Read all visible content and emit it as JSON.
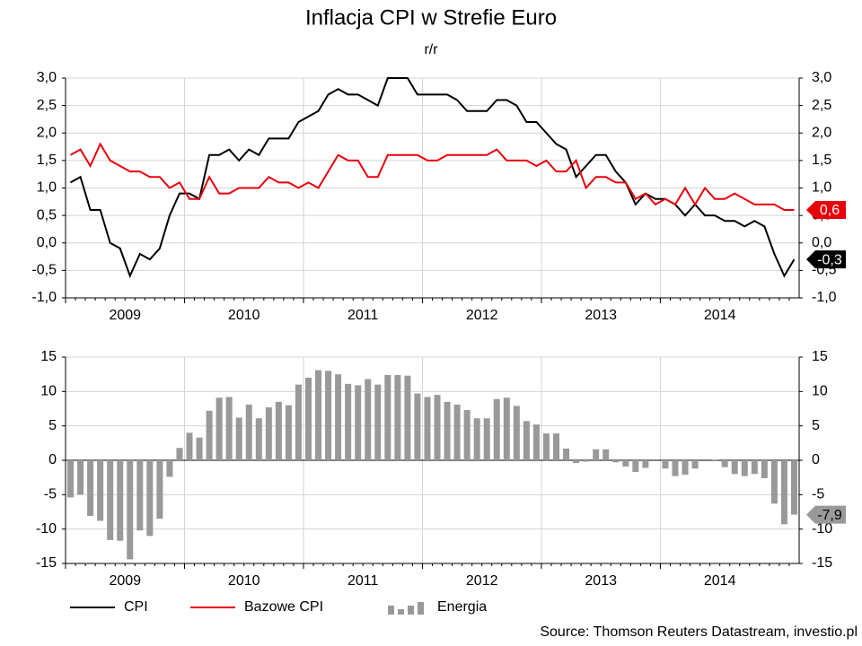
{
  "title": "Inflacja CPI w Strefie Euro",
  "subtitle": "r/r",
  "source": "Source: Thomson Reuters Datastream, investio.pl",
  "chart_data": [
    {
      "type": "line",
      "xlim": [
        "2009-01",
        "2015-02"
      ],
      "xticks": [
        2009,
        2010,
        2011,
        2012,
        2013,
        2014
      ],
      "ylim": [
        -1,
        3
      ],
      "yticks": [
        {
          "value": -1,
          "label": "-1,0"
        },
        {
          "value": -0.5,
          "label": "-0,5"
        },
        {
          "value": 0,
          "label": "0,0"
        },
        {
          "value": 0.5,
          "label": "0,5"
        },
        {
          "value": 1,
          "label": "1,0"
        },
        {
          "value": 1.5,
          "label": "1,5"
        },
        {
          "value": 2,
          "label": "2,0"
        },
        {
          "value": 2.5,
          "label": "2,5"
        },
        {
          "value": 3,
          "label": "3,0"
        }
      ],
      "grid": true,
      "x": [
        "2009-01",
        "2009-02",
        "2009-03",
        "2009-04",
        "2009-05",
        "2009-06",
        "2009-07",
        "2009-08",
        "2009-09",
        "2009-10",
        "2009-11",
        "2009-12",
        "2010-01",
        "2010-02",
        "2010-03",
        "2010-04",
        "2010-05",
        "2010-06",
        "2010-07",
        "2010-08",
        "2010-09",
        "2010-10",
        "2010-11",
        "2010-12",
        "2011-01",
        "2011-02",
        "2011-03",
        "2011-04",
        "2011-05",
        "2011-06",
        "2011-07",
        "2011-08",
        "2011-09",
        "2011-10",
        "2011-11",
        "2011-12",
        "2012-01",
        "2012-02",
        "2012-03",
        "2012-04",
        "2012-05",
        "2012-06",
        "2012-07",
        "2012-08",
        "2012-09",
        "2012-10",
        "2012-11",
        "2012-12",
        "2013-01",
        "2013-02",
        "2013-03",
        "2013-04",
        "2013-05",
        "2013-06",
        "2013-07",
        "2013-08",
        "2013-09",
        "2013-10",
        "2013-11",
        "2013-12",
        "2014-01",
        "2014-02",
        "2014-03",
        "2014-04",
        "2014-05",
        "2014-06",
        "2014-07",
        "2014-08",
        "2014-09",
        "2014-10",
        "2014-11",
        "2014-12",
        "2015-01",
        "2015-02"
      ],
      "series": [
        {
          "name": "CPI",
          "color": "#000000",
          "end_label": "-0,3",
          "values": [
            1.1,
            1.2,
            0.6,
            0.6,
            0.0,
            -0.1,
            -0.6,
            -0.2,
            -0.3,
            -0.1,
            0.5,
            0.9,
            0.9,
            0.8,
            1.6,
            1.6,
            1.7,
            1.5,
            1.7,
            1.6,
            1.9,
            1.9,
            1.9,
            2.2,
            2.3,
            2.4,
            2.7,
            2.8,
            2.7,
            2.7,
            2.6,
            2.5,
            3.0,
            3.0,
            3.0,
            2.7,
            2.7,
            2.7,
            2.7,
            2.6,
            2.4,
            2.4,
            2.4,
            2.6,
            2.6,
            2.5,
            2.2,
            2.2,
            2.0,
            1.8,
            1.7,
            1.2,
            1.4,
            1.6,
            1.6,
            1.3,
            1.1,
            0.7,
            0.9,
            0.8,
            0.8,
            0.7,
            0.5,
            0.7,
            0.5,
            0.5,
            0.4,
            0.4,
            0.3,
            0.4,
            0.3,
            -0.2,
            -0.6,
            -0.3
          ]
        },
        {
          "name": "Bazowe CPI",
          "color": "#e8000b",
          "end_label": "0,6",
          "values": [
            1.6,
            1.7,
            1.4,
            1.8,
            1.5,
            1.4,
            1.3,
            1.3,
            1.2,
            1.2,
            1.0,
            1.1,
            0.8,
            0.8,
            1.2,
            0.9,
            0.9,
            1.0,
            1.0,
            1.0,
            1.2,
            1.1,
            1.1,
            1.0,
            1.1,
            1.0,
            1.3,
            1.6,
            1.5,
            1.5,
            1.2,
            1.2,
            1.6,
            1.6,
            1.6,
            1.6,
            1.5,
            1.5,
            1.6,
            1.6,
            1.6,
            1.6,
            1.6,
            1.7,
            1.5,
            1.5,
            1.5,
            1.4,
            1.5,
            1.3,
            1.3,
            1.5,
            1.0,
            1.2,
            1.2,
            1.1,
            1.1,
            0.8,
            0.9,
            0.7,
            0.8,
            0.7,
            1.0,
            0.7,
            1.0,
            0.8,
            0.8,
            0.9,
            0.8,
            0.7,
            0.7,
            0.7,
            0.6,
            0.6
          ]
        }
      ]
    },
    {
      "type": "bar",
      "xlim": [
        "2009-01",
        "2015-02"
      ],
      "xticks": [
        2009,
        2010,
        2011,
        2012,
        2013,
        2014
      ],
      "ylim": [
        -15,
        15
      ],
      "yticks": [
        -15,
        -10,
        -5,
        0,
        5,
        10,
        15
      ],
      "grid": true,
      "x": [
        "2009-01",
        "2009-02",
        "2009-03",
        "2009-04",
        "2009-05",
        "2009-06",
        "2009-07",
        "2009-08",
        "2009-09",
        "2009-10",
        "2009-11",
        "2009-12",
        "2010-01",
        "2010-02",
        "2010-03",
        "2010-04",
        "2010-05",
        "2010-06",
        "2010-07",
        "2010-08",
        "2010-09",
        "2010-10",
        "2010-11",
        "2010-12",
        "2011-01",
        "2011-02",
        "2011-03",
        "2011-04",
        "2011-05",
        "2011-06",
        "2011-07",
        "2011-08",
        "2011-09",
        "2011-10",
        "2011-11",
        "2011-12",
        "2012-01",
        "2012-02",
        "2012-03",
        "2012-04",
        "2012-05",
        "2012-06",
        "2012-07",
        "2012-08",
        "2012-09",
        "2012-10",
        "2012-11",
        "2012-12",
        "2013-01",
        "2013-02",
        "2013-03",
        "2013-04",
        "2013-05",
        "2013-06",
        "2013-07",
        "2013-08",
        "2013-09",
        "2013-10",
        "2013-11",
        "2013-12",
        "2014-01",
        "2014-02",
        "2014-03",
        "2014-04",
        "2014-05",
        "2014-06",
        "2014-07",
        "2014-08",
        "2014-09",
        "2014-10",
        "2014-11",
        "2014-12",
        "2015-01",
        "2015-02"
      ],
      "series": [
        {
          "name": "Energia",
          "color": "#999999",
          "end_label": "-7,9",
          "values": [
            -5.4,
            -5.0,
            -8.1,
            -8.8,
            -11.6,
            -11.7,
            -14.4,
            -10.2,
            -11.0,
            -8.5,
            -2.4,
            1.8,
            4.0,
            3.3,
            7.2,
            9.1,
            9.2,
            6.2,
            8.1,
            6.1,
            7.7,
            8.5,
            8.0,
            11.0,
            12.0,
            13.1,
            13.0,
            12.5,
            11.1,
            10.9,
            11.8,
            11.0,
            12.4,
            12.4,
            12.3,
            9.7,
            9.2,
            9.5,
            8.5,
            8.1,
            7.3,
            6.1,
            6.1,
            8.9,
            9.1,
            7.9,
            5.7,
            5.2,
            3.9,
            3.9,
            1.7,
            -0.4,
            -0.2,
            1.6,
            1.6,
            -0.3,
            -0.9,
            -1.7,
            -1.1,
            0.0,
            -1.2,
            -2.3,
            -2.1,
            -1.2,
            0.0,
            0.1,
            -1.0,
            -2.0,
            -2.3,
            -2.0,
            -2.6,
            -6.3,
            -9.3,
            -7.9
          ]
        }
      ]
    }
  ]
}
